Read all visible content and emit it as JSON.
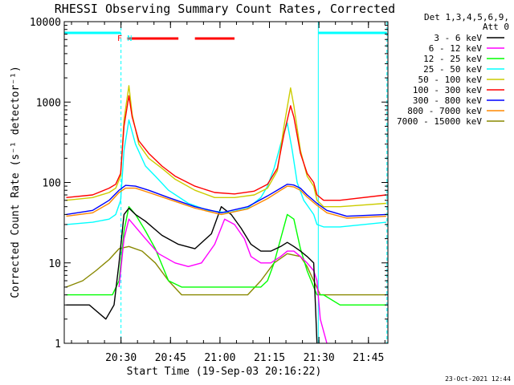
{
  "chart_data": {
    "type": "line",
    "title": "RHESSI Observing Summary Count Rates, Corrected",
    "xlabel": "Start Time (19-Sep-03 20:16:22)",
    "ylabel": "Corrected Count Rate (s⁻¹ detector⁻¹)",
    "yscale": "log",
    "ylim": [
      1,
      10000
    ],
    "xlim_minutes": [
      -3.6,
      94.5
    ],
    "x_unit": "minutes after 20:16:22",
    "xticks": [
      {
        "label": "20:30",
        "value": 13.6
      },
      {
        "label": "20:45",
        "value": 28.6
      },
      {
        "label": "21:00",
        "value": 43.6
      },
      {
        "label": "21:15",
        "value": 58.6
      },
      {
        "label": "21:30",
        "value": 73.6
      },
      {
        "label": "21:45",
        "value": 88.6
      }
    ],
    "yticks": [
      {
        "label": "1",
        "value": 1
      },
      {
        "label": "10",
        "value": 10
      },
      {
        "label": "100",
        "value": 100
      },
      {
        "label": "1000",
        "value": 1000
      },
      {
        "label": "10000",
        "value": 10000
      }
    ],
    "legend_header": [
      "Det 1,3,4,5,6,9,",
      "Att 0"
    ],
    "series": [
      {
        "name": "3 - 6 keV",
        "color": "#000000",
        "x": [
          -3,
          4,
          9,
          11.5,
          13,
          14.5,
          16,
          18,
          21,
          26,
          31,
          36,
          41,
          44,
          47,
          50,
          53,
          56,
          59,
          62,
          64,
          66,
          68,
          70,
          72,
          73
        ],
        "y": [
          3,
          3,
          2,
          3,
          10,
          40,
          48,
          40,
          33,
          22,
          17,
          15,
          23,
          50,
          40,
          27,
          17,
          14,
          14,
          16,
          18,
          16,
          14,
          12,
          10,
          1
        ]
      },
      {
        "name": "6 - 12 keV",
        "color": "#ff00ff",
        "x": [
          13,
          14.5,
          16,
          18,
          21,
          25,
          30,
          34,
          38,
          42,
          45,
          48,
          51,
          53,
          56,
          59,
          62,
          64,
          66,
          68,
          70,
          72,
          73,
          74,
          76
        ],
        "y": [
          5,
          20,
          35,
          28,
          20,
          13,
          10,
          9,
          10,
          17,
          35,
          30,
          20,
          12,
          10,
          10,
          12,
          14,
          14,
          12,
          10,
          8,
          6,
          2,
          1
        ]
      },
      {
        "name": "12 - 25 keV",
        "color": "#00ff00",
        "x": [
          -3,
          6,
          11,
          13,
          14.5,
          16,
          18,
          21,
          24,
          28,
          32,
          40,
          50,
          56,
          58,
          60,
          62,
          64,
          66,
          68,
          70,
          72,
          73,
          75,
          80,
          94
        ],
        "y": [
          4,
          4,
          4,
          6,
          25,
          50,
          40,
          25,
          15,
          6,
          5,
          5,
          5,
          5,
          6,
          10,
          20,
          40,
          35,
          15,
          8,
          5,
          4,
          4,
          3,
          3
        ]
      },
      {
        "name": "25 - 50 keV",
        "color": "#00ffff",
        "x": [
          -3,
          5,
          10,
          12,
          13.5,
          14.5,
          16,
          18,
          21,
          24,
          28,
          34,
          40,
          46,
          52,
          56,
          58,
          60,
          62,
          64,
          65.5,
          67,
          69,
          72,
          73,
          75,
          80,
          94
        ],
        "y": [
          30,
          32,
          35,
          40,
          60,
          250,
          600,
          300,
          160,
          120,
          80,
          55,
          45,
          42,
          48,
          65,
          90,
          150,
          300,
          550,
          250,
          100,
          60,
          40,
          30,
          28,
          28,
          32
        ]
      },
      {
        "name": "50 - 100 keV",
        "color": "#cccc00",
        "x": [
          -3,
          5,
          10,
          12,
          13.5,
          14.5,
          16,
          17,
          19,
          22,
          26,
          30,
          36,
          42,
          48,
          54,
          58,
          61,
          63,
          65,
          66,
          68,
          70,
          72,
          73,
          75,
          80,
          94
        ],
        "y": [
          60,
          65,
          75,
          85,
          120,
          600,
          1600,
          700,
          300,
          200,
          150,
          110,
          80,
          65,
          65,
          70,
          85,
          140,
          500,
          1500,
          900,
          250,
          120,
          90,
          60,
          50,
          50,
          55
        ]
      },
      {
        "name": "100 - 300 keV",
        "color": "#ff0000",
        "x": [
          -3,
          5,
          10,
          12,
          13.5,
          14.5,
          16,
          17,
          19,
          22,
          26,
          30,
          36,
          42,
          48,
          54,
          58,
          61,
          63,
          65,
          66,
          68,
          70,
          72,
          73,
          75,
          80,
          94
        ],
        "y": [
          65,
          70,
          85,
          95,
          130,
          500,
          1200,
          650,
          330,
          230,
          160,
          120,
          90,
          75,
          72,
          78,
          95,
          150,
          400,
          900,
          650,
          230,
          130,
          100,
          70,
          60,
          60,
          70
        ]
      },
      {
        "name": "300 - 800 keV",
        "color": "#0000ff",
        "x": [
          -3,
          5,
          10,
          13,
          15,
          18,
          22,
          28,
          36,
          44,
          52,
          58,
          62,
          64,
          66,
          68,
          70,
          73,
          76,
          82,
          94
        ],
        "y": [
          40,
          45,
          60,
          80,
          92,
          90,
          80,
          65,
          50,
          42,
          50,
          68,
          85,
          95,
          93,
          85,
          70,
          55,
          45,
          38,
          40
        ]
      },
      {
        "name": "800 - 7000 keV",
        "color": "#ff8800",
        "x": [
          -3,
          5,
          10,
          13,
          15,
          18,
          22,
          28,
          36,
          44,
          52,
          58,
          62,
          64,
          66,
          68,
          70,
          73,
          76,
          82,
          94
        ],
        "y": [
          38,
          42,
          55,
          75,
          85,
          85,
          75,
          62,
          48,
          40,
          47,
          63,
          80,
          90,
          88,
          80,
          66,
          52,
          42,
          36,
          38
        ]
      },
      {
        "name": "7000 - 15000 keV",
        "color": "#888800",
        "x": [
          -3,
          2,
          6,
          10,
          13,
          16,
          20,
          24,
          28,
          32,
          36,
          40,
          46,
          52,
          56,
          60,
          64,
          68,
          70,
          72,
          74,
          78,
          94
        ],
        "y": [
          5,
          6,
          8,
          11,
          15,
          16,
          14,
          10,
          6,
          4,
          4,
          4,
          4,
          4,
          6,
          10,
          13,
          12,
          9,
          6,
          4,
          4,
          4
        ]
      }
    ],
    "annotations": [
      {
        "text": "F",
        "x": 13.2,
        "color": "#ff0000"
      },
      {
        "text": "N",
        "x": 16.2,
        "color": "#00ffff"
      }
    ],
    "flare_bars": [
      [
        15.5,
        31
      ],
      [
        36,
        48
      ]
    ],
    "night_bars": [
      [
        -3.5,
        13.6
      ],
      [
        73.4,
        94.2
      ]
    ],
    "dashed_lines": [
      13.6,
      94.2
    ],
    "solid_lines": [
      73.4
    ]
  },
  "footer_date": "23-Oct-2021 12:44"
}
